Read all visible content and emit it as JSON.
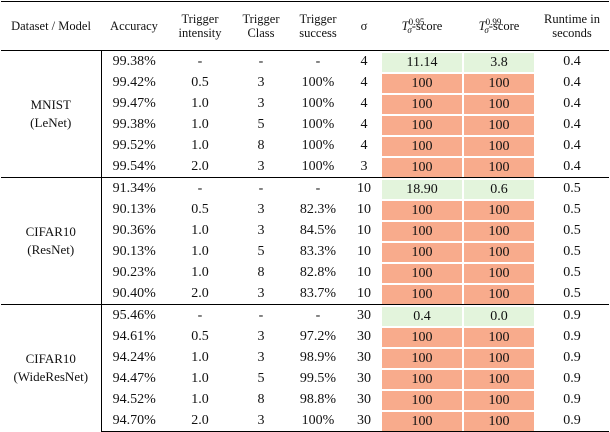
{
  "table": {
    "header": [
      "Dataset / Model",
      "Accuracy",
      "Trigger intensity",
      "Trigger Class",
      "Trigger success",
      "σ",
      {
        "symbol": "T",
        "superscript": "0.95",
        "subscript": "σ",
        "suffix": "-score"
      },
      {
        "symbol": "T",
        "superscript": "0.99",
        "subscript": "σ",
        "suffix": "-score"
      },
      "Runtime in seconds"
    ],
    "groups": [
      {
        "dataset": "MNIST",
        "model": "(LeNet)",
        "rows": [
          [
            "99.38%",
            "-",
            "-",
            "-",
            "4",
            "11.14",
            "3.8",
            "0.4"
          ],
          [
            "99.42%",
            "0.5",
            "3",
            "100%",
            "4",
            "100",
            "100",
            "0.4"
          ],
          [
            "99.47%",
            "1.0",
            "3",
            "100%",
            "4",
            "100",
            "100",
            "0.4"
          ],
          [
            "99.38%",
            "1.0",
            "5",
            "100%",
            "4",
            "100",
            "100",
            "0.4"
          ],
          [
            "99.52%",
            "1.0",
            "8",
            "100%",
            "4",
            "100",
            "100",
            "0.4"
          ],
          [
            "99.54%",
            "2.0",
            "3",
            "100%",
            "3",
            "100",
            "100",
            "0.4"
          ]
        ]
      },
      {
        "dataset": "CIFAR10",
        "model": "(ResNet)",
        "rows": [
          [
            "91.34%",
            "-",
            "-",
            "-",
            "10",
            "18.90",
            "0.6",
            "0.5"
          ],
          [
            "90.13%",
            "0.5",
            "3",
            "82.3%",
            "10",
            "100",
            "100",
            "0.5"
          ],
          [
            "90.36%",
            "1.0",
            "3",
            "84.5%",
            "10",
            "100",
            "100",
            "0.5"
          ],
          [
            "90.13%",
            "1.0",
            "5",
            "83.3%",
            "10",
            "100",
            "100",
            "0.5"
          ],
          [
            "90.23%",
            "1.0",
            "8",
            "82.8%",
            "10",
            "100",
            "100",
            "0.5"
          ],
          [
            "90.40%",
            "2.0",
            "3",
            "83.7%",
            "10",
            "100",
            "100",
            "0.5"
          ]
        ]
      },
      {
        "dataset": "CIFAR10",
        "model": "(WideResNet)",
        "rows": [
          [
            "95.46%",
            "-",
            "-",
            "-",
            "30",
            "0.4",
            "0.0",
            "0.9"
          ],
          [
            "94.61%",
            "0.5",
            "3",
            "97.2%",
            "30",
            "100",
            "100",
            "0.9"
          ],
          [
            "94.24%",
            "1.0",
            "3",
            "98.9%",
            "30",
            "100",
            "100",
            "0.9"
          ],
          [
            "94.47%",
            "1.0",
            "5",
            "99.5%",
            "30",
            "100",
            "100",
            "0.9"
          ],
          [
            "94.52%",
            "1.0",
            "8",
            "98.8%",
            "30",
            "100",
            "100",
            "0.9"
          ],
          [
            "94.70%",
            "2.0",
            "3",
            "100%",
            "30",
            "100",
            "100",
            "0.9"
          ]
        ]
      }
    ]
  }
}
